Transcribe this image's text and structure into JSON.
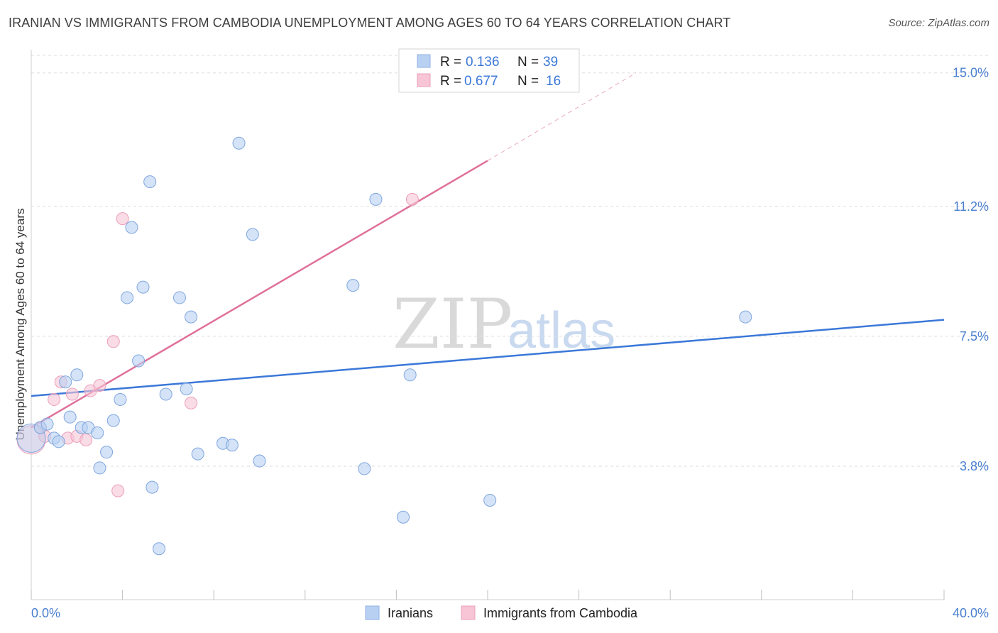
{
  "title": "IRANIAN VS IMMIGRANTS FROM CAMBODIA UNEMPLOYMENT AMONG AGES 60 TO 64 YEARS CORRELATION CHART",
  "source": "Source: ZipAtlas.com",
  "watermark": {
    "zip": "ZIP",
    "atlas": "atlas"
  },
  "colors": {
    "blue": "#3b78d8",
    "pink": "#e0709a",
    "blue_fill": "#b8d0f2",
    "pink_fill": "#f7c5d5"
  },
  "legend": {
    "r_label": "R =",
    "n_label": "N =",
    "series1": {
      "r": "0.136",
      "n": "39"
    },
    "series2": {
      "r": "0.677",
      "n": "16"
    }
  },
  "bottom_legend": {
    "series1": "Iranians",
    "series2": "Immigrants from Cambodia"
  },
  "chart_data": {
    "type": "scatter",
    "title": "IRANIAN VS IMMIGRANTS FROM CAMBODIA UNEMPLOYMENT AMONG AGES 60 TO 64 YEARS CORRELATION CHART",
    "xlabel": "",
    "ylabel": "Unemployment Among Ages 60 to 64 years",
    "xlim": [
      0,
      40
    ],
    "ylim": [
      0,
      15.5
    ],
    "x_tick_labels": [
      "0.0%",
      "40.0%"
    ],
    "y_ticks": [
      3.8,
      7.5,
      11.2,
      15.0
    ],
    "y_tick_labels": [
      "3.8%",
      "7.5%",
      "11.2%",
      "15.0%"
    ],
    "series": [
      {
        "name": "Iranians",
        "r": 0.136,
        "n": 39,
        "trend": {
          "x": [
            0,
            40
          ],
          "y": [
            5.8,
            7.97
          ]
        },
        "points": [
          {
            "x": 0.0,
            "y": 4.6,
            "big": true
          },
          {
            "x": 0.4,
            "y": 4.9
          },
          {
            "x": 0.7,
            "y": 5.0
          },
          {
            "x": 1.0,
            "y": 4.6
          },
          {
            "x": 1.2,
            "y": 4.5
          },
          {
            "x": 1.5,
            "y": 6.2
          },
          {
            "x": 1.7,
            "y": 5.2
          },
          {
            "x": 2.0,
            "y": 6.4
          },
          {
            "x": 2.2,
            "y": 4.9
          },
          {
            "x": 2.5,
            "y": 4.9
          },
          {
            "x": 2.9,
            "y": 4.75
          },
          {
            "x": 3.0,
            "y": 3.75
          },
          {
            "x": 3.3,
            "y": 4.2
          },
          {
            "x": 3.6,
            "y": 5.1
          },
          {
            "x": 3.9,
            "y": 5.7
          },
          {
            "x": 4.2,
            "y": 8.6
          },
          {
            "x": 4.4,
            "y": 10.6
          },
          {
            "x": 4.7,
            "y": 6.8
          },
          {
            "x": 4.9,
            "y": 8.9
          },
          {
            "x": 5.2,
            "y": 11.9
          },
          {
            "x": 5.3,
            "y": 3.2
          },
          {
            "x": 5.6,
            "y": 1.45
          },
          {
            "x": 5.9,
            "y": 5.85
          },
          {
            "x": 6.5,
            "y": 8.6
          },
          {
            "x": 6.8,
            "y": 6.0
          },
          {
            "x": 7.0,
            "y": 8.05
          },
          {
            "x": 7.3,
            "y": 4.15
          },
          {
            "x": 8.4,
            "y": 4.45
          },
          {
            "x": 8.8,
            "y": 4.4
          },
          {
            "x": 9.1,
            "y": 13.0
          },
          {
            "x": 9.7,
            "y": 10.4
          },
          {
            "x": 10.0,
            "y": 3.95
          },
          {
            "x": 14.1,
            "y": 8.95
          },
          {
            "x": 14.6,
            "y": 3.73
          },
          {
            "x": 15.1,
            "y": 11.4
          },
          {
            "x": 16.3,
            "y": 2.35
          },
          {
            "x": 16.6,
            "y": 6.4
          },
          {
            "x": 20.1,
            "y": 2.83
          },
          {
            "x": 31.3,
            "y": 8.05
          }
        ]
      },
      {
        "name": "Immigrants from Cambodia",
        "r": 0.677,
        "n": 16,
        "trend": {
          "x": [
            0,
            20
          ],
          "y": [
            4.9,
            12.5
          ]
        },
        "trend_dashed": {
          "x": [
            20,
            26.5
          ],
          "y": [
            12.5,
            15.0
          ]
        },
        "points": [
          {
            "x": 0.0,
            "y": 4.55,
            "big": true
          },
          {
            "x": 0.4,
            "y": 4.9
          },
          {
            "x": 0.6,
            "y": 4.65
          },
          {
            "x": 1.0,
            "y": 5.7
          },
          {
            "x": 1.3,
            "y": 6.2
          },
          {
            "x": 1.6,
            "y": 4.6
          },
          {
            "x": 1.8,
            "y": 5.85
          },
          {
            "x": 2.0,
            "y": 4.65
          },
          {
            "x": 2.4,
            "y": 4.55
          },
          {
            "x": 2.6,
            "y": 5.95
          },
          {
            "x": 3.0,
            "y": 6.1
          },
          {
            "x": 3.6,
            "y": 7.35
          },
          {
            "x": 3.8,
            "y": 3.1
          },
          {
            "x": 4.0,
            "y": 10.85
          },
          {
            "x": 7.0,
            "y": 5.6
          },
          {
            "x": 16.7,
            "y": 11.4
          }
        ]
      }
    ]
  }
}
